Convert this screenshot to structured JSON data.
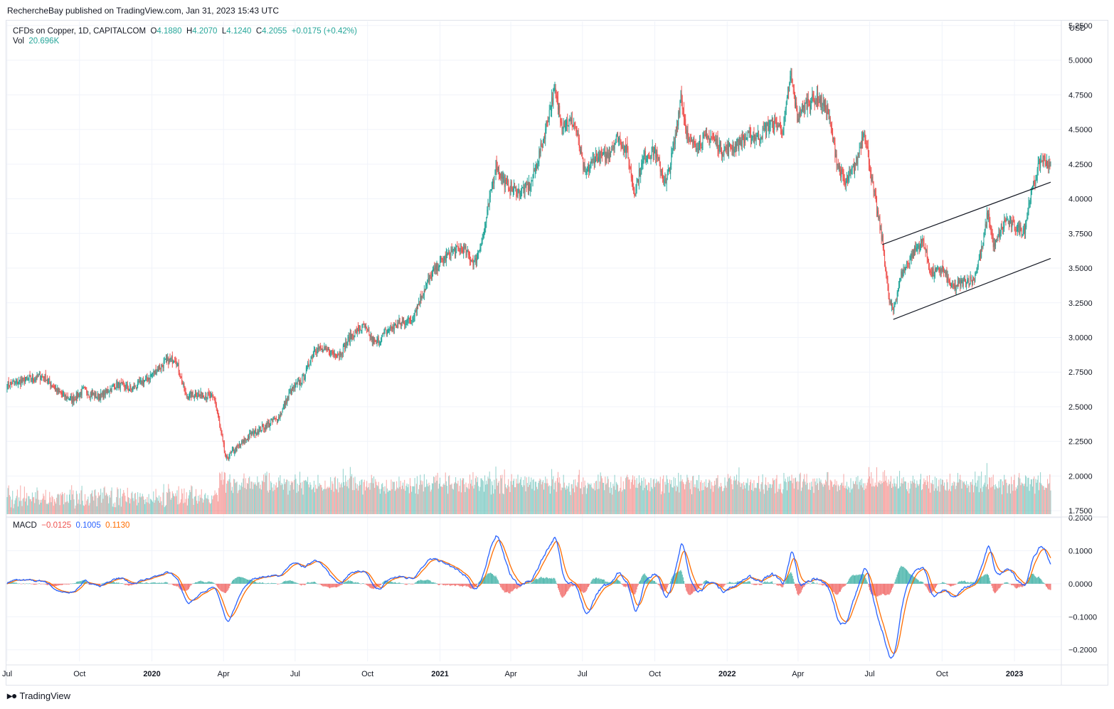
{
  "header": {
    "publisher_line": "RechercheBay published on TradingView.com, Jan 31, 2023 15:43 UTC"
  },
  "legend": {
    "symbol": "CFDs on Copper, 1D, CAPITALCOM",
    "o_label": "O",
    "o_value": "4.1880",
    "h_label": "H",
    "h_value": "4.2070",
    "l_label": "L",
    "l_value": "4.1240",
    "c_label": "C",
    "c_value": "4.2055",
    "change": "+0.0175 (+0.42%)",
    "vol_label": "Vol",
    "vol_value": "20.696K",
    "macd_label": "MACD",
    "macd_hist": "−0.0125",
    "macd_line": "0.1005",
    "macd_signal": "0.1130"
  },
  "currency": "USD",
  "footer": {
    "brand": "TradingView",
    "logo_icon": "tradingview-logo-icon"
  },
  "colors": {
    "up": "#26a69a",
    "down": "#ef5350",
    "macd": "#2962ff",
    "signal": "#ff6d00",
    "grid": "#f0f3fa",
    "trendline": "#131722"
  },
  "chart_data": {
    "type": "candlestick",
    "title": "CFDs on Copper, 1D, CAPITALCOM",
    "price_axis": {
      "ticks": [
        "5.2500",
        "5.0000",
        "4.7500",
        "4.5000",
        "4.2500",
        "4.0000",
        "3.7500",
        "3.5000",
        "3.2500",
        "3.0000",
        "2.7500",
        "2.5000",
        "2.2500",
        "2.0000",
        "1.7500"
      ],
      "ylim": [
        1.72,
        5.27
      ]
    },
    "macd_axis": {
      "ticks": [
        "0.2000",
        "0.1000",
        "0.0000",
        "−0.1000",
        "−0.2000"
      ],
      "ylim": [
        -0.235,
        0.2
      ]
    },
    "time_axis": {
      "labels": [
        "Jul",
        "Oct",
        "2020",
        "Apr",
        "Jul",
        "Oct",
        "2021",
        "Apr",
        "Jul",
        "Oct",
        "2022",
        "Apr",
        "Jul",
        "Oct",
        "2023"
      ],
      "bold": [
        false,
        false,
        true,
        false,
        false,
        false,
        true,
        false,
        false,
        false,
        true,
        false,
        false,
        false,
        true
      ],
      "days": [
        0,
        92,
        184,
        275,
        366,
        458,
        550,
        640,
        731,
        823,
        915,
        1005,
        1096,
        1188,
        1280
      ]
    },
    "date_range": [
      "2019-06-15",
      "2023-01-31"
    ],
    "close_anchors": [
      [
        "2019-06-15",
        2.66
      ],
      [
        "2019-07-15",
        2.7
      ],
      [
        "2019-08-01",
        2.72
      ],
      [
        "2019-08-20",
        2.6
      ],
      [
        "2019-09-05",
        2.55
      ],
      [
        "2019-09-20",
        2.62
      ],
      [
        "2019-10-10",
        2.57
      ],
      [
        "2019-11-01",
        2.66
      ],
      [
        "2019-11-20",
        2.63
      ],
      [
        "2019-12-10",
        2.7
      ],
      [
        "2020-01-01",
        2.82
      ],
      [
        "2020-01-15",
        2.85
      ],
      [
        "2020-01-28",
        2.58
      ],
      [
        "2020-02-10",
        2.59
      ],
      [
        "2020-02-25",
        2.58
      ],
      [
        "2020-03-05",
        2.55
      ],
      [
        "2020-03-19",
        2.12
      ],
      [
        "2020-04-01",
        2.2
      ],
      [
        "2020-04-20",
        2.3
      ],
      [
        "2020-05-05",
        2.35
      ],
      [
        "2020-05-25",
        2.42
      ],
      [
        "2020-06-10",
        2.62
      ],
      [
        "2020-06-25",
        2.7
      ],
      [
        "2020-07-10",
        2.92
      ],
      [
        "2020-07-25",
        2.9
      ],
      [
        "2020-08-10",
        2.88
      ],
      [
        "2020-08-25",
        3.01
      ],
      [
        "2020-09-10",
        3.08
      ],
      [
        "2020-09-25",
        2.95
      ],
      [
        "2020-10-10",
        3.05
      ],
      [
        "2020-10-25",
        3.1
      ],
      [
        "2020-11-10",
        3.13
      ],
      [
        "2020-11-30",
        3.4
      ],
      [
        "2020-12-15",
        3.53
      ],
      [
        "2020-12-31",
        3.62
      ],
      [
        "2021-01-15",
        3.64
      ],
      [
        "2021-01-29",
        3.53
      ],
      [
        "2021-02-10",
        3.76
      ],
      [
        "2021-02-25",
        4.25
      ],
      [
        "2021-03-10",
        4.1
      ],
      [
        "2021-03-25",
        4.05
      ],
      [
        "2021-04-10",
        4.1
      ],
      [
        "2021-04-25",
        4.4
      ],
      [
        "2021-05-10",
        4.78
      ],
      [
        "2021-05-20",
        4.55
      ],
      [
        "2021-06-05",
        4.55
      ],
      [
        "2021-06-18",
        4.17
      ],
      [
        "2021-07-01",
        4.3
      ],
      [
        "2021-07-15",
        4.3
      ],
      [
        "2021-07-30",
        4.45
      ],
      [
        "2021-08-10",
        4.35
      ],
      [
        "2021-08-20",
        4.05
      ],
      [
        "2021-09-01",
        4.3
      ],
      [
        "2021-09-15",
        4.35
      ],
      [
        "2021-09-29",
        4.1
      ],
      [
        "2021-10-10",
        4.4
      ],
      [
        "2021-10-18",
        4.75
      ],
      [
        "2021-10-28",
        4.4
      ],
      [
        "2021-11-10",
        4.4
      ],
      [
        "2021-11-25",
        4.45
      ],
      [
        "2021-12-10",
        4.35
      ],
      [
        "2021-12-25",
        4.38
      ],
      [
        "2022-01-10",
        4.45
      ],
      [
        "2022-01-25",
        4.45
      ],
      [
        "2022-02-10",
        4.55
      ],
      [
        "2022-02-25",
        4.5
      ],
      [
        "2022-03-07",
        4.9
      ],
      [
        "2022-03-15",
        4.58
      ],
      [
        "2022-03-28",
        4.7
      ],
      [
        "2022-04-10",
        4.72
      ],
      [
        "2022-04-22",
        4.65
      ],
      [
        "2022-05-05",
        4.25
      ],
      [
        "2022-05-15",
        4.1
      ],
      [
        "2022-05-30",
        4.28
      ],
      [
        "2022-06-08",
        4.5
      ],
      [
        "2022-06-20",
        4.05
      ],
      [
        "2022-07-01",
        3.7
      ],
      [
        "2022-07-10",
        3.25
      ],
      [
        "2022-07-15",
        3.2
      ],
      [
        "2022-07-25",
        3.45
      ],
      [
        "2022-08-10",
        3.62
      ],
      [
        "2022-08-22",
        3.7
      ],
      [
        "2022-09-01",
        3.45
      ],
      [
        "2022-09-15",
        3.5
      ],
      [
        "2022-09-28",
        3.35
      ],
      [
        "2022-10-10",
        3.4
      ],
      [
        "2022-10-25",
        3.42
      ],
      [
        "2022-11-05",
        3.65
      ],
      [
        "2022-11-12",
        3.9
      ],
      [
        "2022-11-20",
        3.65
      ],
      [
        "2022-12-05",
        3.85
      ],
      [
        "2022-12-20",
        3.78
      ],
      [
        "2022-12-29",
        3.78
      ],
      [
        "2023-01-05",
        4.02
      ],
      [
        "2023-01-12",
        4.15
      ],
      [
        "2023-01-18",
        4.28
      ],
      [
        "2023-01-25",
        4.28
      ],
      [
        "2023-01-31",
        4.2055
      ]
    ],
    "trendlines": [
      {
        "from": [
          "2022-07-01",
          3.67
        ],
        "to": [
          "2023-01-31",
          4.12
        ]
      },
      {
        "from": [
          "2022-07-15",
          3.13
        ],
        "to": [
          "2023-01-31",
          3.57
        ]
      }
    ]
  }
}
